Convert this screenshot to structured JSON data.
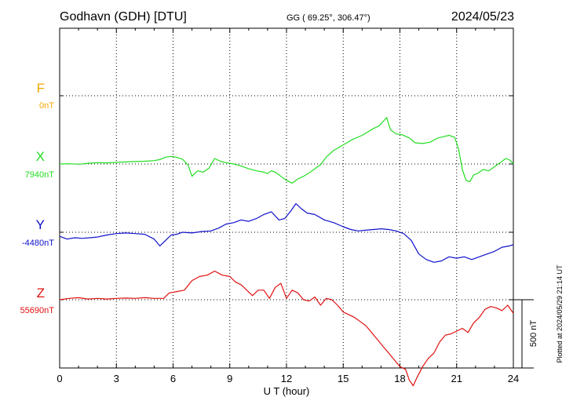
{
  "header": {
    "station": "Godhavn (GDH)  [DTU]",
    "coords": "GG ( 69.25°, 306.47°)",
    "date": "2024/05/23"
  },
  "side_note": "Plotted at 2024/05/29 21:14 UT",
  "scale_bar": {
    "label": "500 nT",
    "value_nT": 500
  },
  "colors": {
    "F": "#f0a800",
    "X": "#22dd22",
    "Y": "#1010cc",
    "Z": "#e01010",
    "grid": "#000000"
  },
  "chart_data": {
    "type": "line",
    "xlabel": "U T (hour)",
    "xlim": [
      0,
      24
    ],
    "xticks": [
      "0",
      "3",
      "6",
      "9",
      "12",
      "15",
      "18",
      "21",
      "24"
    ],
    "nT_per_panel_band": 500,
    "series": [
      {
        "name": "F",
        "baseline_label": "0nT",
        "baseline_nT": 0,
        "x": [],
        "y": []
      },
      {
        "name": "X",
        "baseline_label": "7940nT",
        "baseline_nT": 7940,
        "x": [
          0,
          0.5,
          1,
          1.5,
          2,
          2.5,
          3,
          3.5,
          4,
          4.5,
          5,
          5.3,
          5.6,
          5.9,
          6.2,
          6.5,
          6.8,
          7,
          7.3,
          7.6,
          7.9,
          8.2,
          8.5,
          8.8,
          9.2,
          9.6,
          10,
          10.4,
          10.8,
          11,
          11.2,
          11.4,
          11.7,
          12,
          12.3,
          12.6,
          12.9,
          13.2,
          13.5,
          13.8,
          14.1,
          14.5,
          15,
          15.5,
          16,
          16.3,
          16.6,
          16.9,
          17.1,
          17.3,
          17.5,
          17.8,
          18.1,
          18.5,
          18.8,
          19.2,
          19.6,
          20,
          20.3,
          20.6,
          20.9,
          21.1,
          21.3,
          21.5,
          21.7,
          21.9,
          22.1,
          22.4,
          22.7,
          23,
          23.3,
          23.6,
          23.8,
          24
        ],
        "y": [
          7940,
          7942,
          7938,
          7945,
          7950,
          7948,
          7952,
          7955,
          7958,
          7960,
          7965,
          7972,
          7990,
          7996,
          7988,
          7975,
          7930,
          7850,
          7890,
          7880,
          7910,
          7980,
          7960,
          7950,
          7940,
          7925,
          7905,
          7890,
          7880,
          7870,
          7890,
          7880,
          7850,
          7820,
          7800,
          7830,
          7850,
          7875,
          7905,
          7935,
          7990,
          8040,
          8080,
          8120,
          8150,
          8175,
          8200,
          8220,
          8250,
          8280,
          8190,
          8160,
          8155,
          8130,
          8095,
          8090,
          8100,
          8130,
          8140,
          8150,
          8135,
          8050,
          7900,
          7820,
          7810,
          7860,
          7870,
          7900,
          7890,
          7920,
          7950,
          7980,
          7970,
          7940
        ]
      },
      {
        "name": "Y",
        "baseline_label": "-4480nT",
        "baseline_nT": -4480,
        "x": [
          0,
          0.4,
          0.8,
          1.2,
          1.6,
          2,
          2.5,
          3,
          3.5,
          4,
          4.5,
          5,
          5.3,
          5.6,
          5.9,
          6.2,
          6.5,
          7,
          7.5,
          8,
          8.4,
          8.8,
          9.2,
          9.6,
          10,
          10.4,
          10.8,
          11.2,
          11.6,
          11.9,
          12.2,
          12.5,
          12.8,
          13.1,
          13.5,
          14,
          14.5,
          15,
          15.4,
          15.8,
          16.2,
          16.6,
          17,
          17.4,
          17.8,
          18.2,
          18.6,
          19,
          19.4,
          19.8,
          20.2,
          20.6,
          21,
          21.4,
          21.8,
          22.2,
          22.6,
          23,
          23.4,
          23.8,
          24
        ],
        "y": [
          -4510,
          -4530,
          -4520,
          -4525,
          -4520,
          -4515,
          -4500,
          -4490,
          -4485,
          -4490,
          -4495,
          -4530,
          -4580,
          -4540,
          -4500,
          -4495,
          -4480,
          -4485,
          -4475,
          -4470,
          -4450,
          -4420,
          -4410,
          -4390,
          -4400,
          -4380,
          -4350,
          -4330,
          -4390,
          -4380,
          -4330,
          -4270,
          -4310,
          -4340,
          -4350,
          -4390,
          -4410,
          -4440,
          -4460,
          -4470,
          -4465,
          -4460,
          -4455,
          -4460,
          -4470,
          -4490,
          -4540,
          -4640,
          -4680,
          -4700,
          -4690,
          -4660,
          -4670,
          -4660,
          -4680,
          -4660,
          -4640,
          -4620,
          -4590,
          -4580,
          -4570
        ]
      },
      {
        "name": "Z",
        "baseline_label": "55690nT",
        "baseline_nT": 55690,
        "x": [
          0,
          0.5,
          1,
          1.5,
          2,
          2.5,
          3,
          3.5,
          4,
          4.5,
          5,
          5.5,
          5.8,
          6.2,
          6.6,
          7,
          7.4,
          7.8,
          8.2,
          8.6,
          9,
          9.3,
          9.6,
          9.9,
          10.2,
          10.5,
          10.8,
          11.1,
          11.4,
          11.7,
          12,
          12.3,
          12.6,
          12.9,
          13.2,
          13.5,
          13.8,
          14.1,
          14.4,
          14.7,
          15,
          15.3,
          15.6,
          15.9,
          16.2,
          16.5,
          16.8,
          17.1,
          17.4,
          17.7,
          18,
          18.3,
          18.5,
          18.7,
          18.9,
          19.2,
          19.5,
          19.8,
          20.1,
          20.4,
          20.7,
          21,
          21.3,
          21.6,
          21.9,
          22.2,
          22.5,
          22.8,
          23.1,
          23.4,
          23.7,
          24
        ],
        "y": [
          55690,
          55700,
          55705,
          55695,
          55700,
          55695,
          55700,
          55702,
          55700,
          55705,
          55700,
          55700,
          55740,
          55750,
          55760,
          55830,
          55860,
          55870,
          55900,
          55870,
          55860,
          55820,
          55800,
          55760,
          55720,
          55760,
          55760,
          55700,
          55780,
          55810,
          55700,
          55760,
          55740,
          55690,
          55680,
          55710,
          55650,
          55700,
          55690,
          55650,
          55600,
          55580,
          55560,
          55530,
          55500,
          55450,
          55400,
          55350,
          55300,
          55250,
          55200,
          55180,
          55100,
          55060,
          55120,
          55200,
          55260,
          55300,
          55380,
          55430,
          55440,
          55460,
          55480,
          55450,
          55520,
          55560,
          55620,
          55640,
          55630,
          55610,
          55650,
          55590
        ]
      }
    ]
  }
}
